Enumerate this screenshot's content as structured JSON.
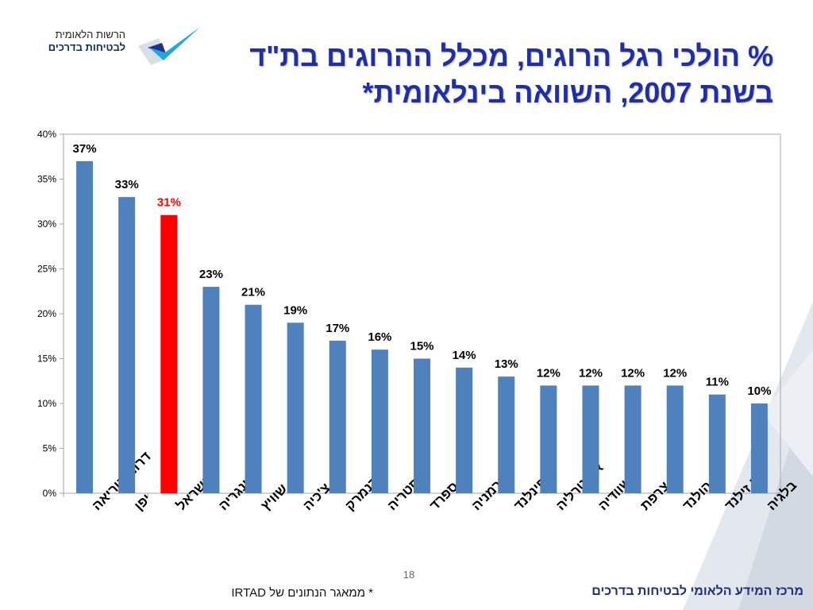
{
  "logo": {
    "line1": "הרשות הלאומית",
    "line2": "לבטיחות בדרכים"
  },
  "title": {
    "line1": "% הולכי רגל הרוגים, מכלל ההרוגים בת\"ד",
    "line2": "בשנת 2007, השוואה בינלאומית*"
  },
  "chart_data": {
    "type": "bar",
    "title": "",
    "xlabel": "",
    "ylabel": "",
    "ylim": [
      0,
      40
    ],
    "yticks": [
      "0%",
      "5%",
      "10%",
      "15%",
      "20%",
      "25%",
      "30%",
      "35%",
      "40%"
    ],
    "grid": false,
    "legend": "none",
    "categories": [
      "דרום קוריאה",
      "יפן",
      "ישראל",
      "הונגריה",
      "שוויץ",
      "צ'כיה",
      "דנמרק",
      "אוסטריה",
      "ספרד",
      "גרמניה",
      "פינלנד",
      "אוסטרליה",
      "שוודיה",
      "צרפת",
      "הולנד",
      "ניו זילנד",
      "בלגיה"
    ],
    "values": [
      37,
      33,
      31,
      23,
      21,
      19,
      17,
      16,
      15,
      14,
      13,
      12,
      12,
      12,
      12,
      11,
      10
    ],
    "data_labels": [
      "37%",
      "33%",
      "31%",
      "23%",
      "21%",
      "19%",
      "17%",
      "16%",
      "15%",
      "14%",
      "13%",
      "12%",
      "12%",
      "12%",
      "12%",
      "11%",
      "10%"
    ],
    "highlight_index": 2,
    "bar_color": "#4f81bd",
    "highlight_color": "#ff0000"
  },
  "page_number": "18",
  "source_note": "* ממאגר הנתונים של IRTAD",
  "footer": "מרכז המידע הלאומי לבטיחות בדרכים",
  "colors": {
    "title": "#1f2fa8",
    "footer": "#1e2f7a",
    "decoration": "#dde2ea"
  }
}
